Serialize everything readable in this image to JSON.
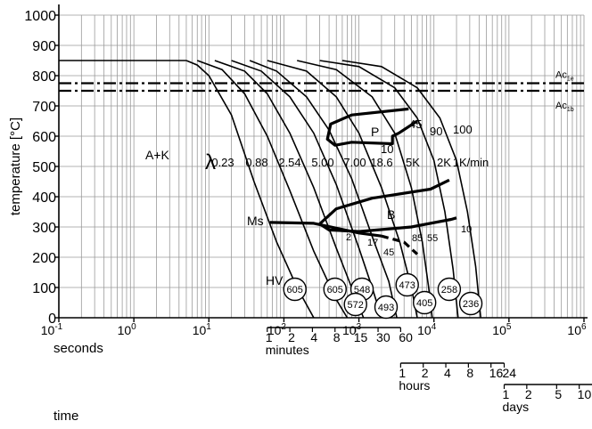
{
  "chart_data": {
    "type": "line",
    "title": "",
    "ylabel": "temperature [°C]",
    "xlabel": "seconds",
    "x_scale": "log",
    "xlim": [
      0.1,
      1000000
    ],
    "ylim": [
      0,
      1000
    ],
    "grid": true,
    "y_ticks": [
      "0",
      "100",
      "200",
      "300",
      "400",
      "500",
      "600",
      "700",
      "800",
      "900",
      "1000"
    ],
    "x_ticks": [
      {
        "base": "10",
        "exp": "-1"
      },
      {
        "base": "10",
        "exp": "0"
      },
      {
        "base": "10",
        "exp": "1"
      },
      {
        "base": "10",
        "exp": "2"
      },
      {
        "base": "10",
        "exp": "3"
      },
      {
        "base": "10",
        "exp": "4"
      },
      {
        "base": "10",
        "exp": "5"
      },
      {
        "base": "10",
        "exp": "6"
      }
    ],
    "time_scales": [
      {
        "label": "minutes",
        "ticks": [
          "1",
          "2",
          "4",
          "8",
          "15",
          "30",
          "60"
        ],
        "values_s": [
          60,
          120,
          240,
          480,
          900,
          1800,
          3600
        ]
      },
      {
        "label": "hours",
        "ticks": [
          "1",
          "2",
          "4",
          "8",
          "16",
          "24"
        ],
        "values_s": [
          3600,
          7200,
          14400,
          28800,
          57600,
          86400
        ]
      },
      {
        "label": "days",
        "ticks": [
          "1",
          "2",
          "5",
          "10"
        ],
        "values_s": [
          86400,
          172800,
          432000,
          864000
        ]
      }
    ],
    "time_label": "time",
    "austenitizing_temperature": 850,
    "critical_temperatures": [
      {
        "name": "Ac1e",
        "base": "Ac",
        "sub": "1e",
        "value": 775
      },
      {
        "name": "Ac1b",
        "base": "Ac",
        "sub": "1b",
        "value": 750
      }
    ],
    "cooling_curves": [
      {
        "lambda": "0.23",
        "points": [
          [
            5,
            850
          ],
          [
            7,
            835
          ],
          [
            10,
            800
          ],
          [
            20,
            670
          ],
          [
            40,
            450
          ],
          [
            80,
            250
          ],
          [
            150,
            100
          ],
          [
            250,
            0
          ]
        ]
      },
      {
        "lambda": "0.88",
        "points": [
          [
            7,
            850
          ],
          [
            15,
            820
          ],
          [
            30,
            740
          ],
          [
            60,
            600
          ],
          [
            120,
            420
          ],
          [
            250,
            220
          ],
          [
            500,
            60
          ],
          [
            700,
            0
          ]
        ]
      },
      {
        "lambda": "2.54",
        "points": [
          [
            12,
            850
          ],
          [
            30,
            815
          ],
          [
            60,
            740
          ],
          [
            120,
            610
          ],
          [
            250,
            430
          ],
          [
            500,
            230
          ],
          [
            800,
            100
          ],
          [
            1150,
            0
          ]
        ]
      },
      {
        "lambda": "5.00",
        "points": [
          [
            20,
            850
          ],
          [
            50,
            815
          ],
          [
            120,
            730
          ],
          [
            250,
            610
          ],
          [
            500,
            440
          ],
          [
            1000,
            230
          ],
          [
            1500,
            100
          ],
          [
            2000,
            0
          ]
        ]
      },
      {
        "lambda": "7.00",
        "points": [
          [
            35,
            850
          ],
          [
            80,
            815
          ],
          [
            200,
            730
          ],
          [
            400,
            620
          ],
          [
            800,
            460
          ],
          [
            1600,
            250
          ],
          [
            2500,
            120
          ],
          [
            3200,
            0
          ]
        ]
      },
      {
        "lambda": "18.6",
        "points": [
          [
            60,
            850
          ],
          [
            200,
            815
          ],
          [
            500,
            730
          ],
          [
            1000,
            610
          ],
          [
            2000,
            430
          ],
          [
            3500,
            250
          ],
          [
            5000,
            100
          ],
          [
            6000,
            0
          ]
        ]
      },
      {
        "lambda": "5K",
        "points": [
          [
            150,
            850
          ],
          [
            500,
            820
          ],
          [
            1500,
            730
          ],
          [
            3000,
            610
          ],
          [
            5000,
            430
          ],
          [
            7000,
            250
          ],
          [
            8500,
            100
          ],
          [
            9500,
            0
          ]
        ]
      },
      {
        "lambda": "2K",
        "points": [
          [
            300,
            850
          ],
          [
            1000,
            830
          ],
          [
            3000,
            760
          ],
          [
            6000,
            660
          ],
          [
            10000,
            520
          ],
          [
            14000,
            350
          ],
          [
            18000,
            160
          ],
          [
            21000,
            0
          ]
        ]
      },
      {
        "lambda": "1K/min",
        "points": [
          [
            600,
            850
          ],
          [
            2000,
            830
          ],
          [
            6000,
            760
          ],
          [
            12000,
            660
          ],
          [
            20000,
            520
          ],
          [
            28000,
            350
          ],
          [
            36000,
            170
          ],
          [
            42000,
            0
          ]
        ]
      }
    ],
    "cooling_rate_labels": [
      "0.23",
      "0.88",
      "2.54",
      "5.00",
      "7.00",
      "18.6",
      "5K",
      "2K",
      "1K/min"
    ],
    "lambda_symbol": "λ",
    "regions": [
      {
        "label": "A+K"
      },
      {
        "label": "P",
        "boundary": [
          [
            4600,
            690
          ],
          [
            800,
            670
          ],
          [
            420,
            640
          ],
          [
            380,
            590
          ],
          [
            480,
            570
          ],
          [
            800,
            580
          ],
          [
            2800,
            575
          ],
          [
            2800,
            600
          ],
          [
            3400,
            610
          ],
          [
            6000,
            650
          ]
        ]
      },
      {
        "label": "B",
        "boundary": [
          [
            16000,
            455
          ],
          [
            9000,
            425
          ],
          [
            1500,
            395
          ],
          [
            500,
            360
          ],
          [
            300,
            310
          ],
          [
            400,
            290
          ],
          [
            1000,
            285
          ],
          [
            5000,
            300
          ],
          [
            17000,
            325
          ],
          [
            20000,
            330
          ]
        ]
      },
      {
        "label": "Ms",
        "points": [
          [
            65,
            315
          ],
          [
            250,
            312
          ],
          [
            1000,
            280
          ],
          [
            2000,
            270
          ],
          [
            4000,
            250
          ],
          [
            6000,
            210
          ]
        ],
        "dashed_from_index": 3
      }
    ],
    "transformation_percentages": [
      "10",
      "45",
      "90",
      "100",
      "2",
      "17",
      "45",
      "85",
      "55",
      "10"
    ],
    "hardness_label": "HV",
    "hardness_values": [
      {
        "hv": "605",
        "t": 140
      },
      {
        "hv": "605",
        "t": 480
      },
      {
        "hv": "548",
        "t": 1100
      },
      {
        "hv": "572",
        "t": 900
      },
      {
        "hv": "493",
        "t": 2300
      },
      {
        "hv": "473",
        "t": 4400
      },
      {
        "hv": "405",
        "t": 7500
      },
      {
        "hv": "258",
        "t": 16000
      },
      {
        "hv": "236",
        "t": 31000
      }
    ]
  }
}
